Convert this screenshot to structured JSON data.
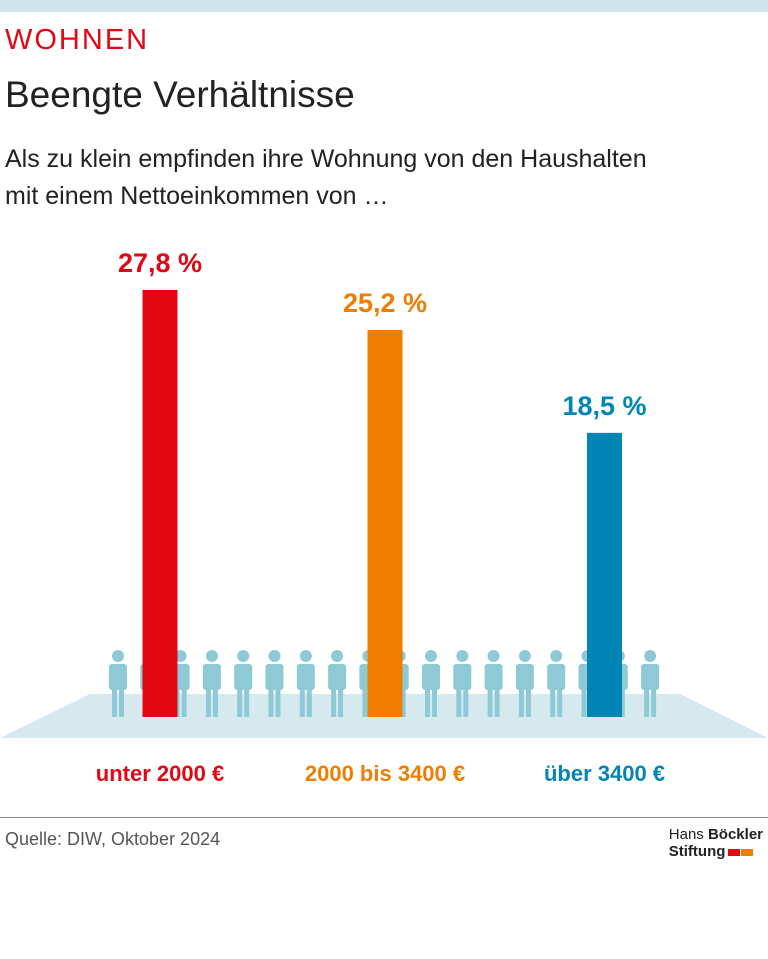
{
  "chart_data": {
    "type": "bar",
    "kicker": "WOHNEN",
    "title": "Beengte Verhältnisse",
    "subtitle": [
      "Als zu klein empfinden ihre Wohnung von den Haushalten",
      "mit einem Nettoeinkommen von …"
    ],
    "categories": [
      "unter 2000 €",
      "2000 bis 3400 €",
      "über 3400 €"
    ],
    "values": [
      27.8,
      25.2,
      18.5
    ],
    "value_labels": [
      "27,8 %",
      "25,2 %",
      "18,5 %"
    ],
    "colors": [
      "#e30613",
      "#f07d00",
      "#0085b5"
    ]
  },
  "footer": {
    "source": "Quelle: DIW, Oktober 2024",
    "logo": [
      "Hans",
      "Böckler",
      "Stiftung"
    ]
  }
}
